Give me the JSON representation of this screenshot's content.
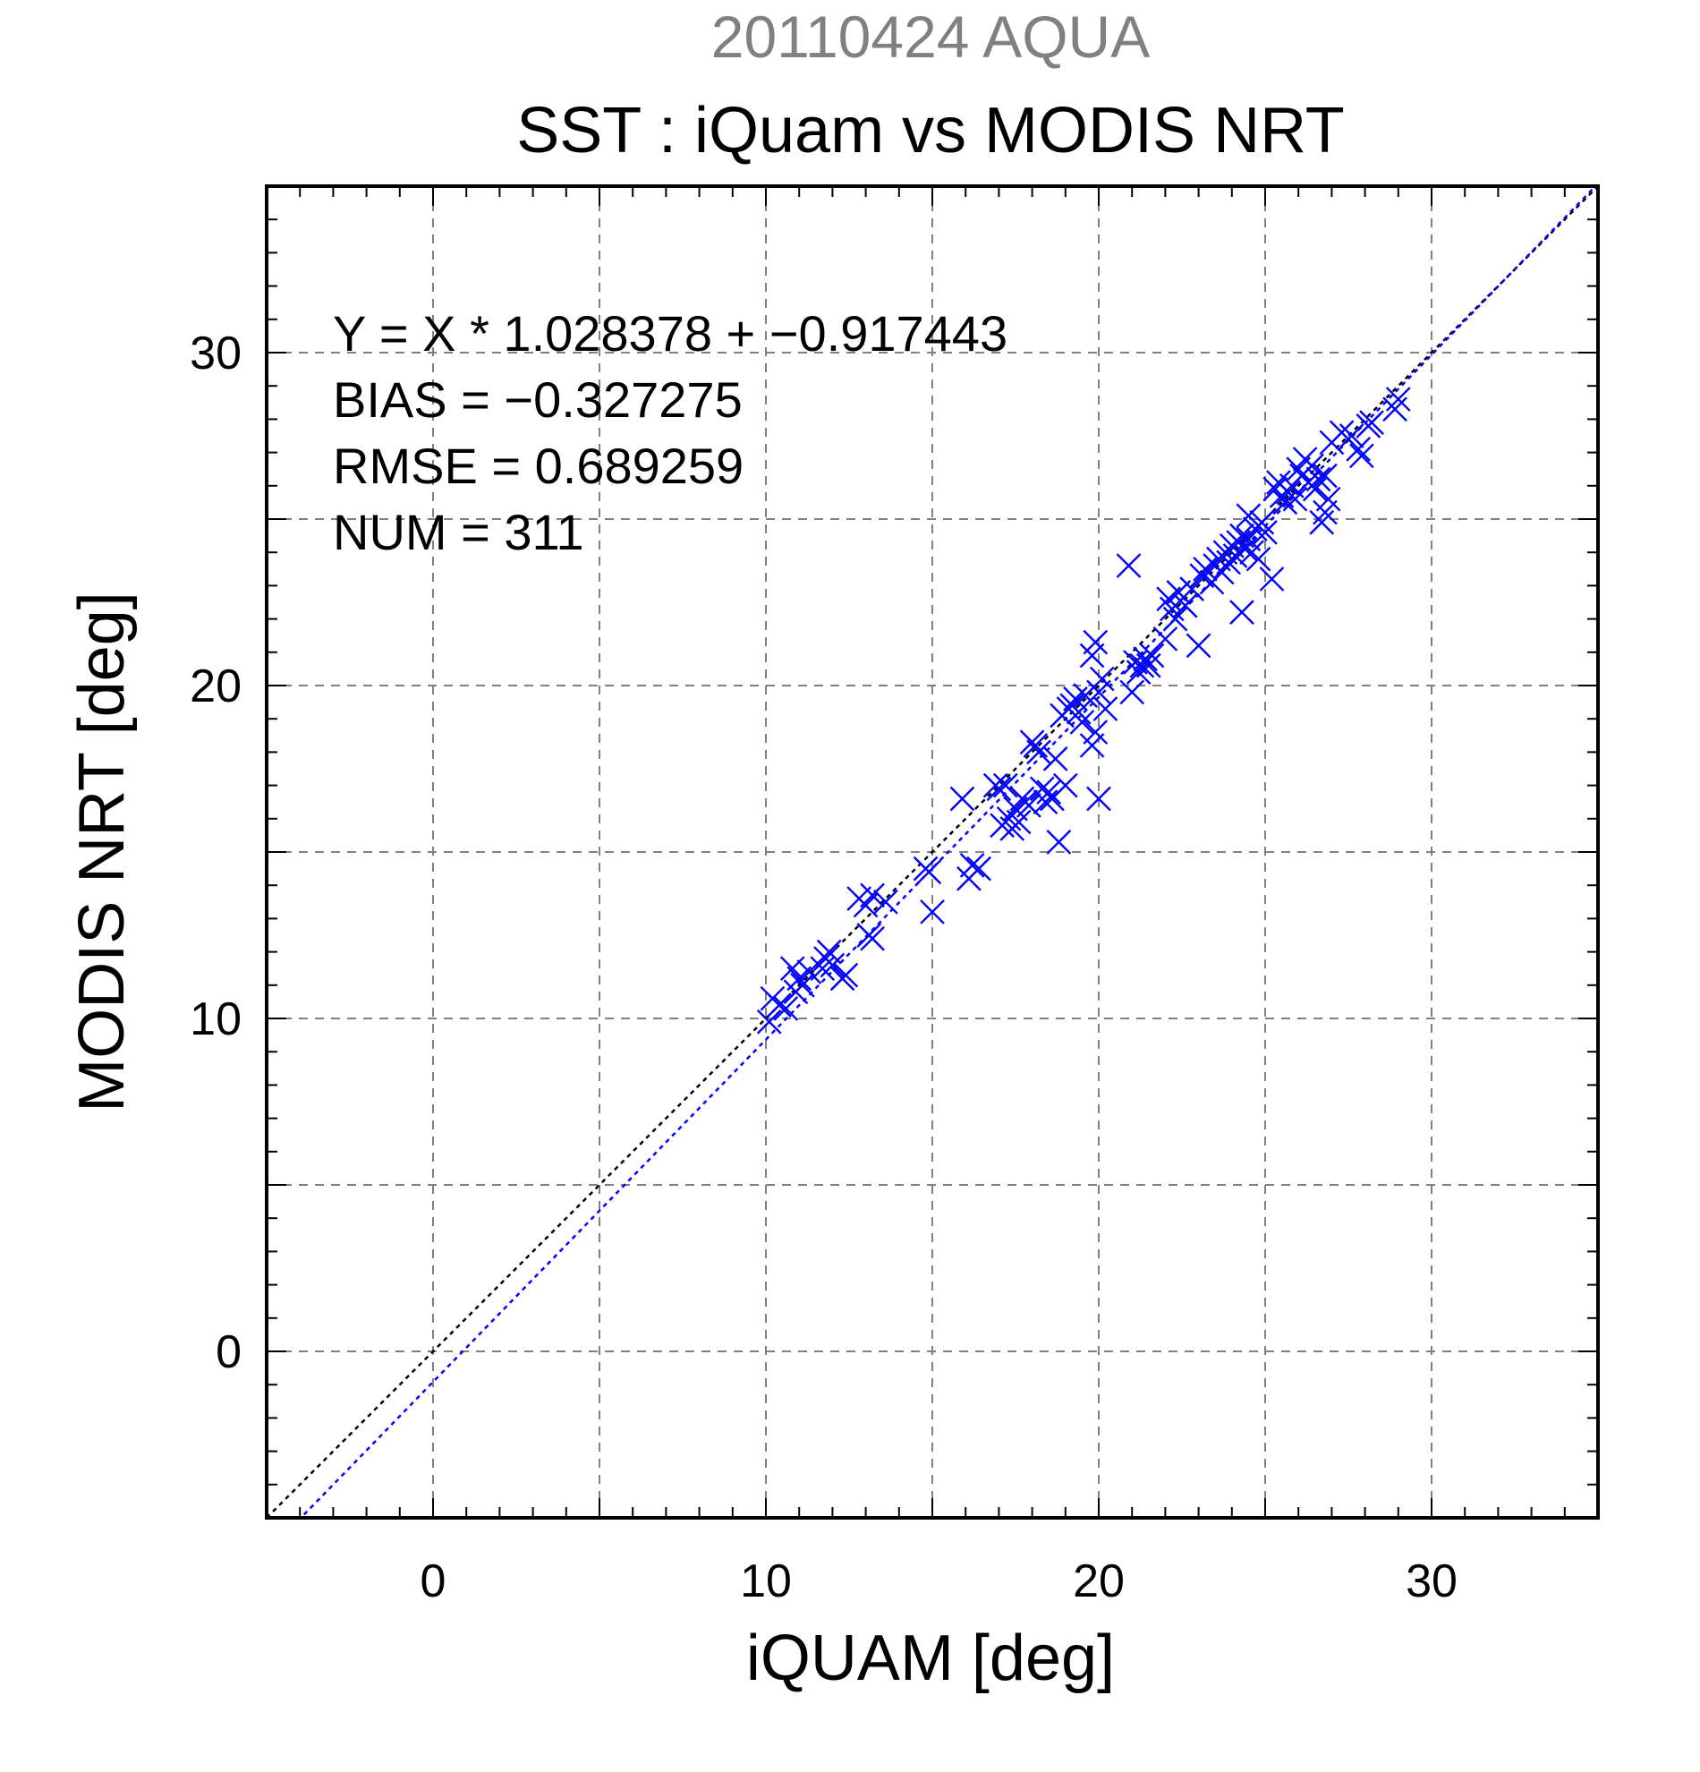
{
  "chart_data": {
    "type": "scatter",
    "subtitle": "20110424 AQUA",
    "title": "SST : iQuam vs MODIS NRT",
    "xlabel": "iQUAM [deg]",
    "ylabel": "MODIS NRT [deg]",
    "xlim": [
      -5,
      35
    ],
    "ylim": [
      -5,
      35
    ],
    "major_ticks": [
      0,
      10,
      20,
      30
    ],
    "grid_values": [
      0,
      5,
      10,
      15,
      20,
      25,
      30
    ],
    "tick_labels": [
      "0",
      "10",
      "20",
      "30"
    ],
    "grid": true,
    "stats": {
      "regression": "Y = X * 1.028378 + −0.917443",
      "bias": "BIAS = −0.327275",
      "rmse": "RMSE = 0.689259",
      "num": "NUM = 311"
    },
    "fit_line": {
      "slope": 1.028378,
      "intercept": -0.917443,
      "color": "#0000ff"
    },
    "identity_line": {
      "slope": 1,
      "intercept": 0,
      "color": "#000000"
    },
    "marker_color": "#0000ff",
    "marker": "x",
    "points": [
      [
        10.1,
        9.9
      ],
      [
        10.2,
        10.6
      ],
      [
        10.4,
        10.4
      ],
      [
        10.6,
        10.3
      ],
      [
        10.8,
        11.5
      ],
      [
        10.9,
        10.8
      ],
      [
        11.0,
        11.2
      ],
      [
        11.1,
        11.0
      ],
      [
        11.3,
        11.4
      ],
      [
        11.7,
        11.5
      ],
      [
        11.8,
        11.8
      ],
      [
        11.9,
        12.0
      ],
      [
        12.0,
        11.6
      ],
      [
        12.3,
        11.2
      ],
      [
        12.4,
        11.3
      ],
      [
        12.8,
        13.6
      ],
      [
        13.0,
        13.4
      ],
      [
        13.1,
        12.5
      ],
      [
        13.2,
        12.4
      ],
      [
        13.2,
        13.7
      ],
      [
        13.6,
        13.5
      ],
      [
        14.8,
        14.5
      ],
      [
        14.9,
        14.4
      ],
      [
        15.0,
        13.2
      ],
      [
        15.9,
        16.6
      ],
      [
        16.1,
        14.2
      ],
      [
        16.2,
        14.6
      ],
      [
        16.4,
        14.5
      ],
      [
        16.9,
        17.0
      ],
      [
        17.0,
        16.9
      ],
      [
        17.1,
        15.8
      ],
      [
        17.2,
        17.0
      ],
      [
        17.3,
        16.0
      ],
      [
        17.4,
        15.7
      ],
      [
        17.5,
        16.3
      ],
      [
        17.6,
        15.9
      ],
      [
        17.7,
        16.6
      ],
      [
        17.8,
        16.5
      ],
      [
        17.9,
        16.4
      ],
      [
        18.0,
        18.3
      ],
      [
        18.1,
        18.2
      ],
      [
        18.2,
        18.0
      ],
      [
        18.3,
        16.9
      ],
      [
        18.4,
        16.5
      ],
      [
        18.5,
        16.8
      ],
      [
        18.6,
        16.6
      ],
      [
        18.7,
        17.8
      ],
      [
        18.8,
        15.3
      ],
      [
        18.9,
        19.1
      ],
      [
        19.0,
        17.0
      ],
      [
        19.1,
        19.3
      ],
      [
        19.2,
        19.4
      ],
      [
        19.3,
        19.6
      ],
      [
        19.4,
        19.2
      ],
      [
        19.5,
        18.9
      ],
      [
        19.6,
        19.7
      ],
      [
        19.8,
        18.2
      ],
      [
        19.8,
        20.9
      ],
      [
        19.9,
        18.6
      ],
      [
        19.9,
        21.3
      ],
      [
        20.0,
        16.6
      ],
      [
        20.0,
        19.8
      ],
      [
        20.1,
        20.2
      ],
      [
        20.2,
        19.3
      ],
      [
        20.9,
        23.6
      ],
      [
        21.0,
        19.8
      ],
      [
        21.1,
        20.7
      ],
      [
        21.2,
        20.4
      ],
      [
        21.3,
        20.6
      ],
      [
        21.4,
        20.8
      ],
      [
        21.5,
        20.6
      ],
      [
        21.6,
        20.9
      ],
      [
        22.0,
        21.4
      ],
      [
        22.1,
        22.6
      ],
      [
        22.2,
        22.3
      ],
      [
        22.3,
        22.0
      ],
      [
        22.4,
        22.8
      ],
      [
        22.6,
        22.4
      ],
      [
        22.8,
        22.9
      ],
      [
        23.0,
        21.2
      ],
      [
        23.1,
        23.3
      ],
      [
        23.2,
        23.5
      ],
      [
        23.4,
        23.1
      ],
      [
        23.5,
        23.6
      ],
      [
        23.6,
        23.8
      ],
      [
        23.7,
        23.4
      ],
      [
        23.8,
        24.0
      ],
      [
        23.9,
        23.7
      ],
      [
        24.0,
        24.2
      ],
      [
        24.1,
        23.9
      ],
      [
        24.2,
        24.3
      ],
      [
        24.3,
        22.2
      ],
      [
        24.3,
        24.5
      ],
      [
        24.4,
        24.1
      ],
      [
        24.5,
        24.4
      ],
      [
        24.5,
        25.1
      ],
      [
        24.6,
        24.0
      ],
      [
        24.7,
        24.7
      ],
      [
        24.8,
        23.8
      ],
      [
        24.9,
        24.9
      ],
      [
        25.0,
        24.6
      ],
      [
        25.2,
        23.2
      ],
      [
        25.3,
        25.9
      ],
      [
        25.4,
        26.1
      ],
      [
        25.5,
        25.7
      ],
      [
        25.6,
        25.5
      ],
      [
        25.7,
        25.8
      ],
      [
        25.8,
        26.0
      ],
      [
        25.9,
        25.6
      ],
      [
        26.0,
        26.5
      ],
      [
        26.1,
        26.3
      ],
      [
        26.2,
        26.8
      ],
      [
        26.3,
        26.1
      ],
      [
        26.4,
        26.6
      ],
      [
        26.5,
        25.9
      ],
      [
        26.6,
        26.2
      ],
      [
        26.7,
        24.9
      ],
      [
        26.8,
        26.3
      ],
      [
        26.8,
        25.2
      ],
      [
        26.9,
        25.6
      ],
      [
        27.0,
        27.3
      ],
      [
        27.3,
        27.6
      ],
      [
        27.6,
        27.5
      ],
      [
        27.8,
        27.1
      ],
      [
        27.9,
        26.9
      ],
      [
        28.1,
        27.8
      ],
      [
        28.2,
        27.9
      ],
      [
        28.9,
        28.3
      ],
      [
        29.0,
        28.6
      ]
    ]
  }
}
